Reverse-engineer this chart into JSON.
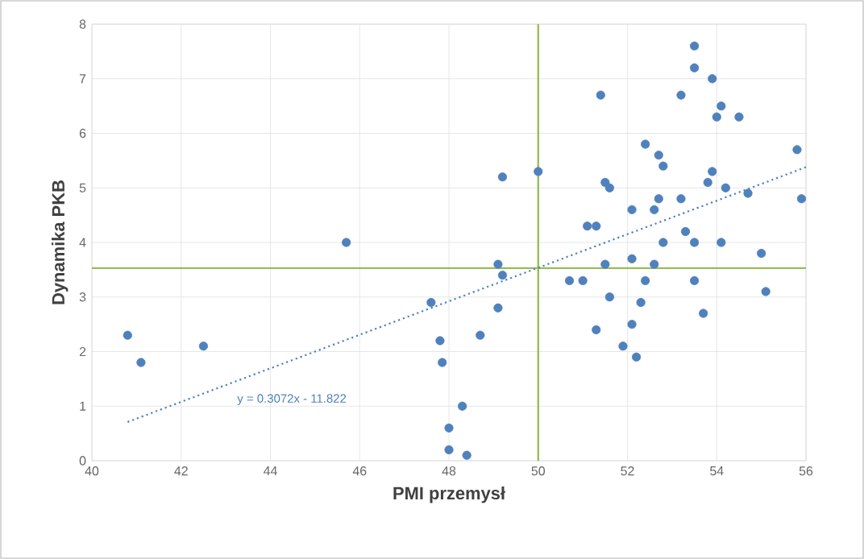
{
  "chart_data": {
    "type": "scatter",
    "xlabel": "PMI przemysł",
    "ylabel": "Dynamika PKB",
    "xlim": [
      40,
      56
    ],
    "xticks": [
      40,
      42,
      44,
      46,
      48,
      50,
      52,
      54,
      56
    ],
    "ylim": [
      0,
      8
    ],
    "yticks": [
      0,
      1,
      2,
      3,
      4,
      5,
      6,
      7,
      8
    ],
    "grid": true,
    "series": [
      {
        "color": "#4f81bd",
        "marker": "circle",
        "x": [
          40.8,
          41.1,
          42.5,
          45.7,
          47.6,
          47.8,
          47.85,
          48.3,
          48.0,
          48.0,
          48.4,
          48.7,
          49.1,
          49.1,
          49.2,
          50.7,
          51.0,
          51.5,
          51.6,
          51.3,
          52.1,
          52.4,
          52.3,
          52.1,
          51.9,
          52.2,
          52.6,
          53.5,
          53.7,
          55.1,
          55.0,
          53.5,
          53.5,
          53.9,
          51.4,
          53.2,
          54.1,
          54.0,
          54.5,
          55.8,
          55.9,
          49.2,
          50.0,
          52.4,
          52.7,
          52.8,
          53.9,
          53.8,
          54.2,
          54.7,
          51.5,
          51.6,
          51.1,
          51.3,
          52.1,
          52.6,
          52.7,
          53.2,
          53.3,
          52.8,
          53.5,
          54.1
        ],
        "values": [
          2.3,
          1.8,
          2.1,
          4.0,
          2.9,
          2.2,
          1.8,
          1.0,
          0.6,
          0.2,
          0.1,
          2.3,
          2.8,
          3.6,
          3.4,
          3.3,
          3.3,
          3.6,
          3.0,
          2.4,
          3.7,
          3.3,
          2.9,
          2.5,
          2.1,
          1.9,
          3.6,
          3.3,
          2.7,
          3.1,
          3.8,
          7.6,
          7.2,
          7.0,
          6.7,
          6.7,
          6.5,
          6.3,
          6.3,
          5.7,
          4.8,
          5.2,
          5.3,
          5.8,
          5.6,
          5.4,
          5.3,
          5.1,
          5.0,
          4.9,
          5.1,
          5.0,
          4.3,
          4.3,
          4.6,
          4.6,
          4.8,
          4.8,
          4.2,
          4.0,
          4.0,
          4.0
        ]
      },
      {
        "type": "line",
        "color": "#4f81bd",
        "line_style": "dotted",
        "marker": "none",
        "x": [
          40.8,
          56
        ],
        "values": [
          0.71,
          5.38
        ]
      }
    ],
    "ref_lines": [
      {
        "axis": "x",
        "value": 50,
        "color": "#9bbb59"
      },
      {
        "axis": "y",
        "value": 3.53,
        "color": "#9bbb59"
      }
    ],
    "annotations": [
      "y = 0.3072x - 11.822"
    ]
  }
}
